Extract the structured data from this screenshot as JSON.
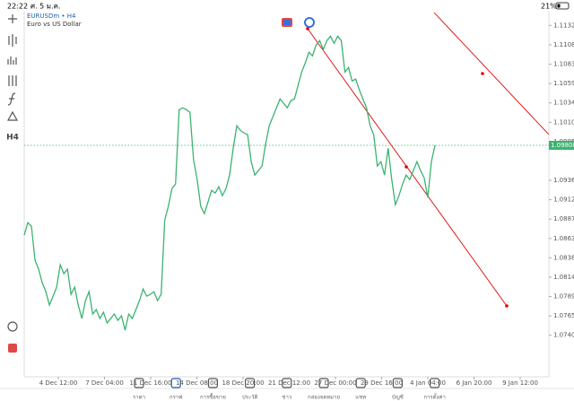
{
  "status_bar": {
    "time": "22:22",
    "date": "ศ. 5 ม.ค.",
    "battery": "21%"
  },
  "toolbar": {
    "timeframe": "H4"
  },
  "chart_data": {
    "type": "line",
    "symbol": "EURUSDm • H4",
    "description": "Euro vs US Dollar",
    "color": "#3cb371",
    "values": [
      1.08671,
      1.0883,
      1.08785,
      1.08354,
      1.08241,
      1.0807,
      1.07957,
      1.07787,
      1.079,
      1.08014,
      1.08297,
      1.08184,
      1.08241,
      1.07923,
      1.08014,
      1.07787,
      1.07617,
      1.07844,
      1.07957,
      1.07674,
      1.0773,
      1.07617,
      1.07696,
      1.0756,
      1.07617,
      1.07674,
      1.07594,
      1.07651,
      1.07469,
      1.07674,
      1.07617,
      1.0773,
      1.07844,
      1.07991,
      1.079,
      1.07923,
      1.07957,
      1.07844,
      1.07923,
      1.08864,
      1.09034,
      1.09261,
      1.09318,
      1.10259,
      1.10282,
      1.10259,
      1.10225,
      1.09624,
      1.09375,
      1.09034,
      1.08944,
      1.09091,
      1.09238,
      1.09204,
      1.09284,
      1.0917,
      1.09261,
      1.09431,
      1.09771,
      1.10055,
      1.09998,
      1.09964,
      1.09942,
      1.09601,
      1.09431,
      1.09488,
      1.09545,
      1.09828,
      1.10055,
      1.10168,
      1.10282,
      1.10395,
      1.10338,
      1.10282,
      1.10372,
      1.10395,
      1.10565,
      1.10735,
      1.10849,
      1.10985,
      1.10939,
      1.11076,
      1.11132,
      1.11019,
      1.11132,
      1.11189,
      1.11098,
      1.11189,
      1.11132,
      1.10735,
      1.10792,
      1.10622,
      1.10645,
      1.10509,
      1.10395,
      1.10282,
      1.10055,
      1.09942,
      1.09545,
      1.09601,
      1.09431,
      1.09771,
      1.09375,
      1.09057,
      1.0917,
      1.09318,
      1.09431,
      1.09375,
      1.09488,
      1.09601,
      1.09488,
      1.09397,
      1.09148,
      1.09601,
      1.09808
    ],
    "ylim": [
      1.0688,
      1.1151
    ],
    "yticks": [
      1.11325,
      {
        "value": 1.1108,
        "label": "1.11080"
      },
      1.10835,
      {
        "value": 1.1059,
        "label": "1.10590"
      },
      1.10345,
      {
        "value": 1.101,
        "label": "1.10100"
      },
      1.09855,
      1.09365,
      {
        "value": 1.0912,
        "label": "1.09120"
      },
      1.08875,
      {
        "value": 1.0863,
        "label": "1.08630"
      },
      1.08385,
      1.0814,
      1.07895,
      {
        "value": 1.0765,
        "label": "1.07650"
      },
      1.07405
    ],
    "xticks": [
      "4 Dec 12:00",
      "7 Dec 04:00",
      "11 Dec 16:00",
      "14 Dec 08:00",
      "18 Dec 20:00",
      "21 Dec 12:00",
      "27 Dec 00:00",
      "29 Dec 16:00",
      "4 Jan 04:00",
      "6 Jan 20:00",
      "9 Jan 12:00"
    ],
    "current_price": 1.09808
  },
  "nav": {
    "tabs": [
      "ราคา",
      "กราฟ",
      "การซื้อขาย",
      "ประวัติ",
      "ข่าว",
      "กล่องจดหมาย",
      "แชท",
      "บัญชี",
      "การตั้งค่า"
    ]
  }
}
